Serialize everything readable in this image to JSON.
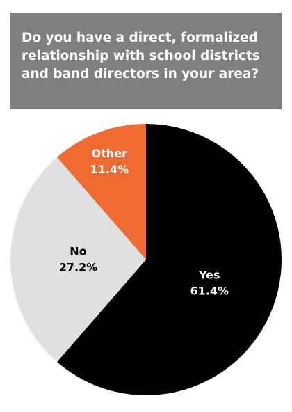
{
  "chart_data": {
    "type": "pie",
    "title": "Do you have a direct, formalized relationship with school districts and band directors in your area?",
    "categories": [
      "Yes",
      "No",
      "Other"
    ],
    "values": [
      61.4,
      27.2,
      11.4
    ],
    "value_labels": [
      "61.4%",
      "27.2%",
      "11.4%"
    ],
    "colors": [
      "#000000",
      "#e0e0e0",
      "#f06a32"
    ],
    "label_colors": [
      "#ffffff",
      "#000000",
      "#ffffff"
    ]
  }
}
